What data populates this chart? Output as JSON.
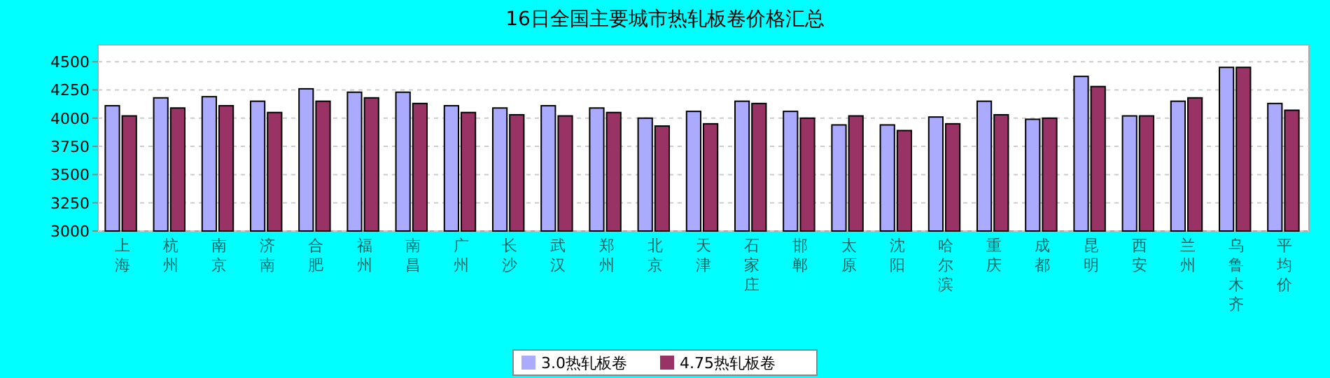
{
  "chart_data": {
    "type": "bar",
    "title": "16日全国主要城市热轧板卷价格汇总",
    "categories": [
      "上海",
      "杭州",
      "南京",
      "济南",
      "合肥",
      "福州",
      "南昌",
      "广州",
      "长沙",
      "武汉",
      "郑州",
      "北京",
      "天津",
      "石家庄",
      "邯郸",
      "太原",
      "沈阳",
      "哈尔滨",
      "重庆",
      "成都",
      "昆明",
      "西安",
      "兰州",
      "乌鲁木齐",
      "平均价"
    ],
    "series": [
      {
        "name": "3.0热轧板卷",
        "color": "#aaaaff",
        "values": [
          4110,
          4180,
          4190,
          4150,
          4260,
          4230,
          4230,
          4110,
          4090,
          4110,
          4090,
          4000,
          4060,
          4150,
          4060,
          3940,
          3940,
          4010,
          4150,
          3990,
          4370,
          4020,
          4150,
          4450,
          4130
        ]
      },
      {
        "name": "4.75热轧板卷",
        "color": "#993366",
        "values": [
          4020,
          4090,
          4110,
          4050,
          4150,
          4180,
          4130,
          4050,
          4030,
          4020,
          4050,
          3930,
          3950,
          4130,
          4000,
          4020,
          3890,
          3950,
          4030,
          4000,
          4280,
          4020,
          4180,
          4450,
          4070
        ]
      }
    ],
    "ylim": [
      3000,
      4650
    ],
    "yticks": [
      3000,
      3250,
      3500,
      3750,
      4000,
      4250,
      4500
    ],
    "grid": "y",
    "legend": "bottom"
  }
}
